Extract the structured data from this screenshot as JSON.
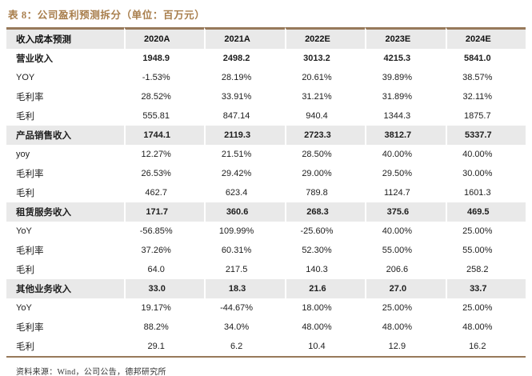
{
  "title": "表 8：公司盈利预测拆分（单位：百万元）",
  "source": "资料来源：Wind，公司公告，德邦研究所",
  "colors": {
    "accent_border_brown": "#97795a",
    "title_brown": "#a87e4c",
    "band_gray": "#e9e9e9",
    "text_black": "#1e1e1e"
  },
  "table": {
    "columns": [
      "收入成本预测",
      "2020A",
      "2021A",
      "2022E",
      "2023E",
      "2024E"
    ],
    "rows": [
      {
        "label": "营业收入",
        "style": "bold",
        "values": [
          "1948.9",
          "2498.2",
          "3013.2",
          "4215.3",
          "5841.0"
        ]
      },
      {
        "label": "YOY",
        "style": "normal",
        "values": [
          "-1.53%",
          "28.19%",
          "20.61%",
          "39.89%",
          "38.57%"
        ]
      },
      {
        "label": "毛利率",
        "style": "normal",
        "values": [
          "28.52%",
          "33.91%",
          "31.21%",
          "31.89%",
          "32.11%"
        ]
      },
      {
        "label": "毛利",
        "style": "normal",
        "values": [
          "555.81",
          "847.14",
          "940.4",
          "1344.3",
          "1875.7"
        ]
      },
      {
        "label": "产品销售收入",
        "style": "section",
        "values": [
          "1744.1",
          "2119.3",
          "2723.3",
          "3812.7",
          "5337.7"
        ]
      },
      {
        "label": "yoy",
        "style": "normal",
        "values": [
          "12.27%",
          "21.51%",
          "28.50%",
          "40.00%",
          "40.00%"
        ]
      },
      {
        "label": "毛利率",
        "style": "normal",
        "values": [
          "26.53%",
          "29.42%",
          "29.00%",
          "29.50%",
          "30.00%"
        ]
      },
      {
        "label": "毛利",
        "style": "normal",
        "values": [
          "462.7",
          "623.4",
          "789.8",
          "1124.7",
          "1601.3"
        ]
      },
      {
        "label": "租赁服务收入",
        "style": "section",
        "values": [
          "171.7",
          "360.6",
          "268.3",
          "375.6",
          "469.5"
        ]
      },
      {
        "label": "YoY",
        "style": "normal",
        "values": [
          "-56.85%",
          "109.99%",
          "-25.60%",
          "40.00%",
          "25.00%"
        ]
      },
      {
        "label": "毛利率",
        "style": "normal",
        "values": [
          "37.26%",
          "60.31%",
          "52.30%",
          "55.00%",
          "55.00%"
        ]
      },
      {
        "label": "毛利",
        "style": "normal",
        "values": [
          "64.0",
          "217.5",
          "140.3",
          "206.6",
          "258.2"
        ]
      },
      {
        "label": "其他业务收入",
        "style": "section",
        "values": [
          "33.0",
          "18.3",
          "21.6",
          "27.0",
          "33.7"
        ]
      },
      {
        "label": "YoY",
        "style": "normal",
        "values": [
          "19.17%",
          "-44.67%",
          "18.00%",
          "25.00%",
          "25.00%"
        ]
      },
      {
        "label": "毛利率",
        "style": "normal",
        "values": [
          "88.2%",
          "34.0%",
          "48.00%",
          "48.00%",
          "48.00%"
        ]
      },
      {
        "label": "毛利",
        "style": "normal",
        "values": [
          "29.1",
          "6.2",
          "10.4",
          "12.9",
          "16.2"
        ]
      }
    ]
  }
}
